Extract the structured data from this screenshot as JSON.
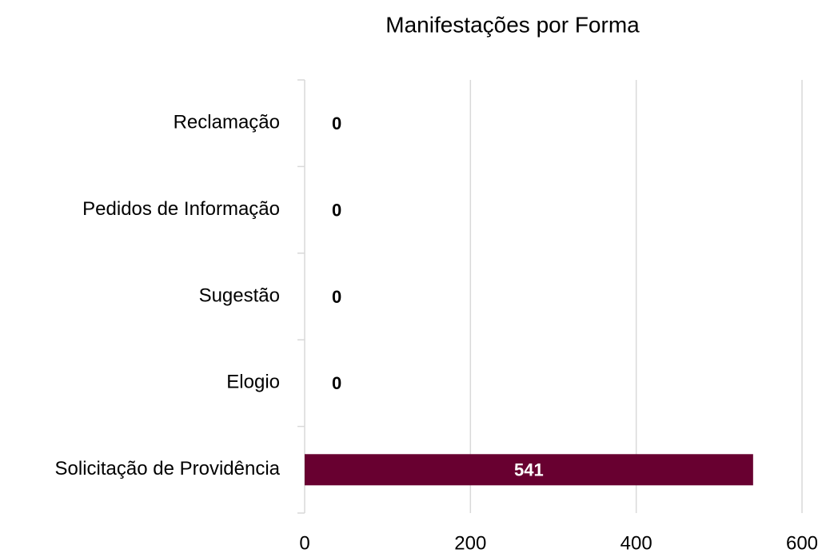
{
  "chart_data": {
    "type": "barh",
    "title": "Manifestações por Forma",
    "categories": [
      "Reclamação",
      "Pedidos de Informação",
      "Sugestão",
      "Elogio",
      "Solicitação de Providência"
    ],
    "values": [
      0,
      0,
      0,
      0,
      541
    ],
    "color": "#680030",
    "xlim": [
      0,
      600
    ],
    "xticks": [
      0,
      200,
      400,
      600
    ],
    "grid": true
  }
}
